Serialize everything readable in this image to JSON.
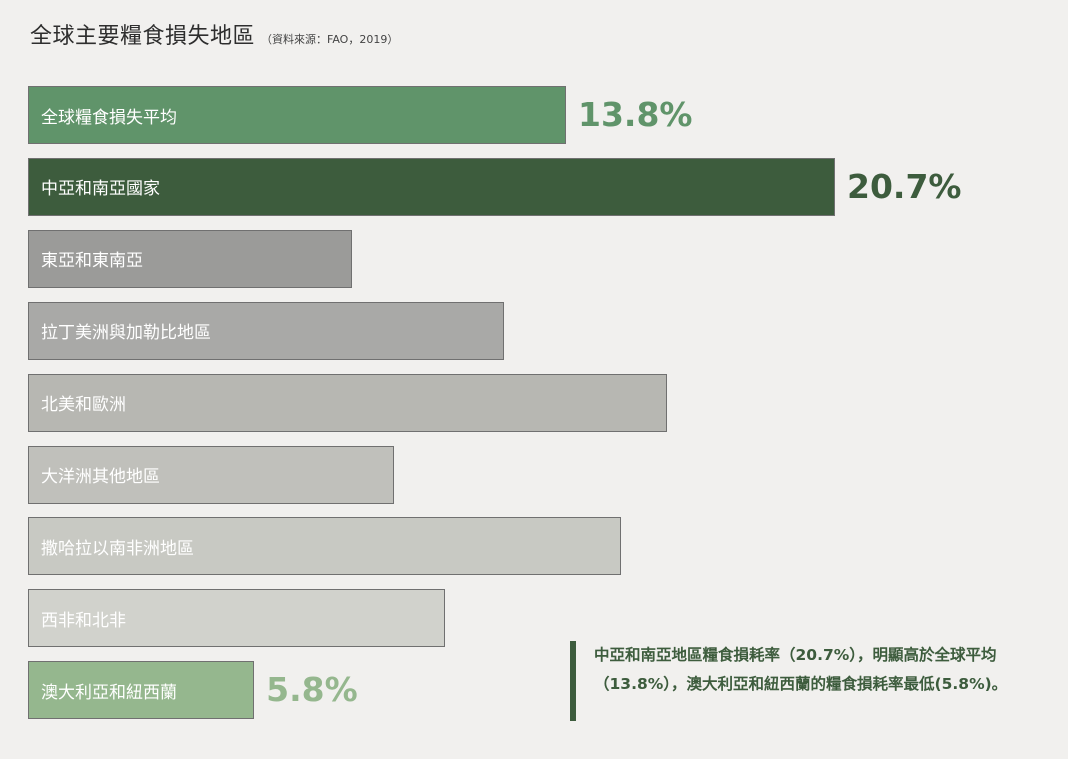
{
  "title": "全球主要糧食損失地區",
  "source": "（資料來源：FAO，2019）",
  "chart_data": {
    "type": "bar",
    "orientation": "horizontal",
    "title": "全球主要糧食損失地區",
    "categories": [
      "全球糧食損失平均",
      "中亞和南亞國家",
      "東亞和東南亞",
      "拉丁美洲與加勒比地區",
      "北美和歐洲",
      "大洋洲其他地區",
      "撒哈拉以南非洲地區",
      "西非和北非",
      "澳大利亞和紐西蘭"
    ],
    "values": [
      13.8,
      20.7,
      8.3,
      12.2,
      16.4,
      9.4,
      15.2,
      10.7,
      5.8
    ],
    "value_labels": [
      "13.8%",
      "20.7%",
      "",
      "",
      "",
      "",
      "",
      "",
      "5.8%"
    ],
    "colors": [
      "#60946a",
      "#3d5c3d",
      "#9b9b99",
      "#a9a9a7",
      "#b7b7b2",
      "#c0c0bb",
      "#c8c9c3",
      "#d1d2cc",
      "#95b78e"
    ],
    "value_label_colors": [
      "#60946a",
      "#3d5c3d",
      "",
      "",
      "",
      "",
      "",
      "",
      "#95b78e"
    ],
    "unit": "%"
  },
  "note": "中亞和南亞地區糧食損耗率（20.7%），明顯高於全球平均（13.8%），澳大利亞和紐西蘭的糧食損耗率最低(5.8%)。"
}
